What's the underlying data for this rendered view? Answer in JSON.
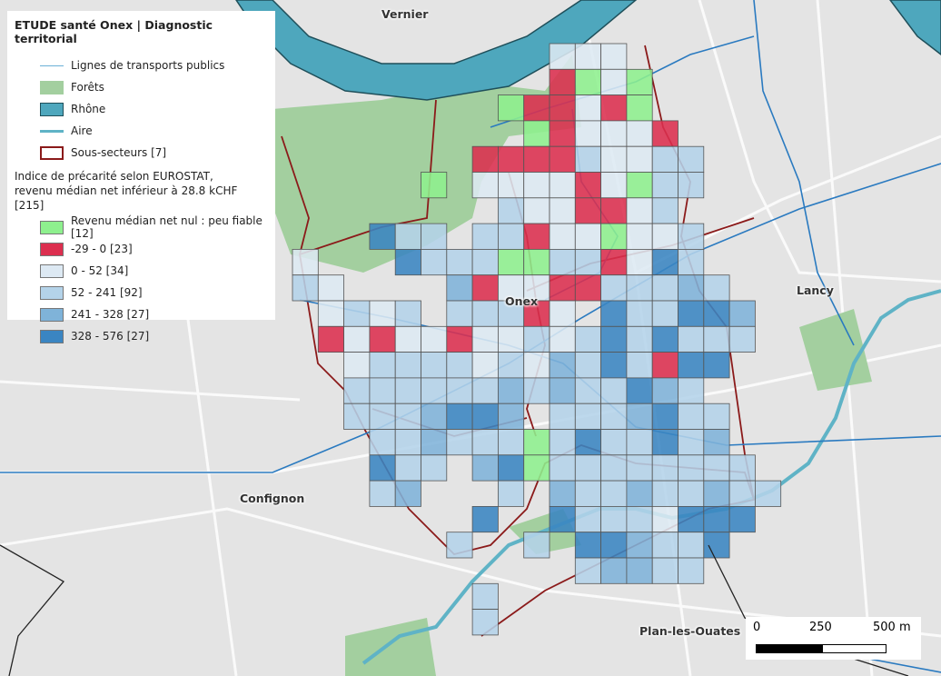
{
  "legend": {
    "title": "ETUDE santé Onex | Diagnostic territorial",
    "layers": [
      {
        "label": "Lignes de transports publics",
        "kind": "line",
        "color": "#6bb0d6"
      },
      {
        "label": "Forêts",
        "kind": "fill",
        "color": "#a3cf9f"
      },
      {
        "label": "Rhône",
        "kind": "fill",
        "color": "#4ea7bd"
      },
      {
        "label": "Aire",
        "kind": "line",
        "color": "#5fb3c6"
      },
      {
        "label": "Sous-secteurs [7]",
        "kind": "outline",
        "color": "#8b1a1a"
      }
    ],
    "index_title_1": "Indice de précarité selon EUROSTAT,",
    "index_title_2": "revenu médian net inférieur à 28.8 kCHF [215]",
    "classes": [
      {
        "key": "g",
        "label": "Revenu médian net nul : peu fiable [12]",
        "color": "#8ef08e"
      },
      {
        "key": "r",
        "label": "-29 - 0 [23]",
        "color": "#dc2f4f"
      },
      {
        "key": "0",
        "label": "0 - 52 [34]",
        "color": "#dde9f3"
      },
      {
        "key": "1",
        "label": "52 - 241 [92]",
        "color": "#b4d3e9"
      },
      {
        "key": "2",
        "label": "241 - 328 [27]",
        "color": "#7fb3d9"
      },
      {
        "key": "3",
        "label": "328 - 576 [27]",
        "color": "#3a85c2"
      }
    ]
  },
  "places": [
    "Vernier",
    "Onex",
    "Lancy",
    "Confignon",
    "Plan-les-Ouates"
  ],
  "scale_bar": {
    "labels": [
      "0",
      "250",
      "500 m"
    ]
  },
  "grid": [
    "..........000......",
    "..........rg0g.....",
    "........grr0rg.....",
    ".........gr000r....",
    ".......rrrr10011...",
    ".....g.0000r0g11...",
    "........100rr01....",
    "...311.11r00g001...",
    "0...3111gg11r031...",
    "10....2r00rr11121..",
    ".0101.111r0.311332.",
    ".r0r00r00101313111.",
    "..011110102131r33..",
    "..11111121211321...",
    "..1112332.1112311..",
    "...112111g1311312..",
    "...311.23g11111111.",
    "...12...1.211211211",
    ".......3..31110333.",
    "......1..1.332113..",
    "...........12211...",
    ".......1...........",
    ".......1..........."
  ]
}
